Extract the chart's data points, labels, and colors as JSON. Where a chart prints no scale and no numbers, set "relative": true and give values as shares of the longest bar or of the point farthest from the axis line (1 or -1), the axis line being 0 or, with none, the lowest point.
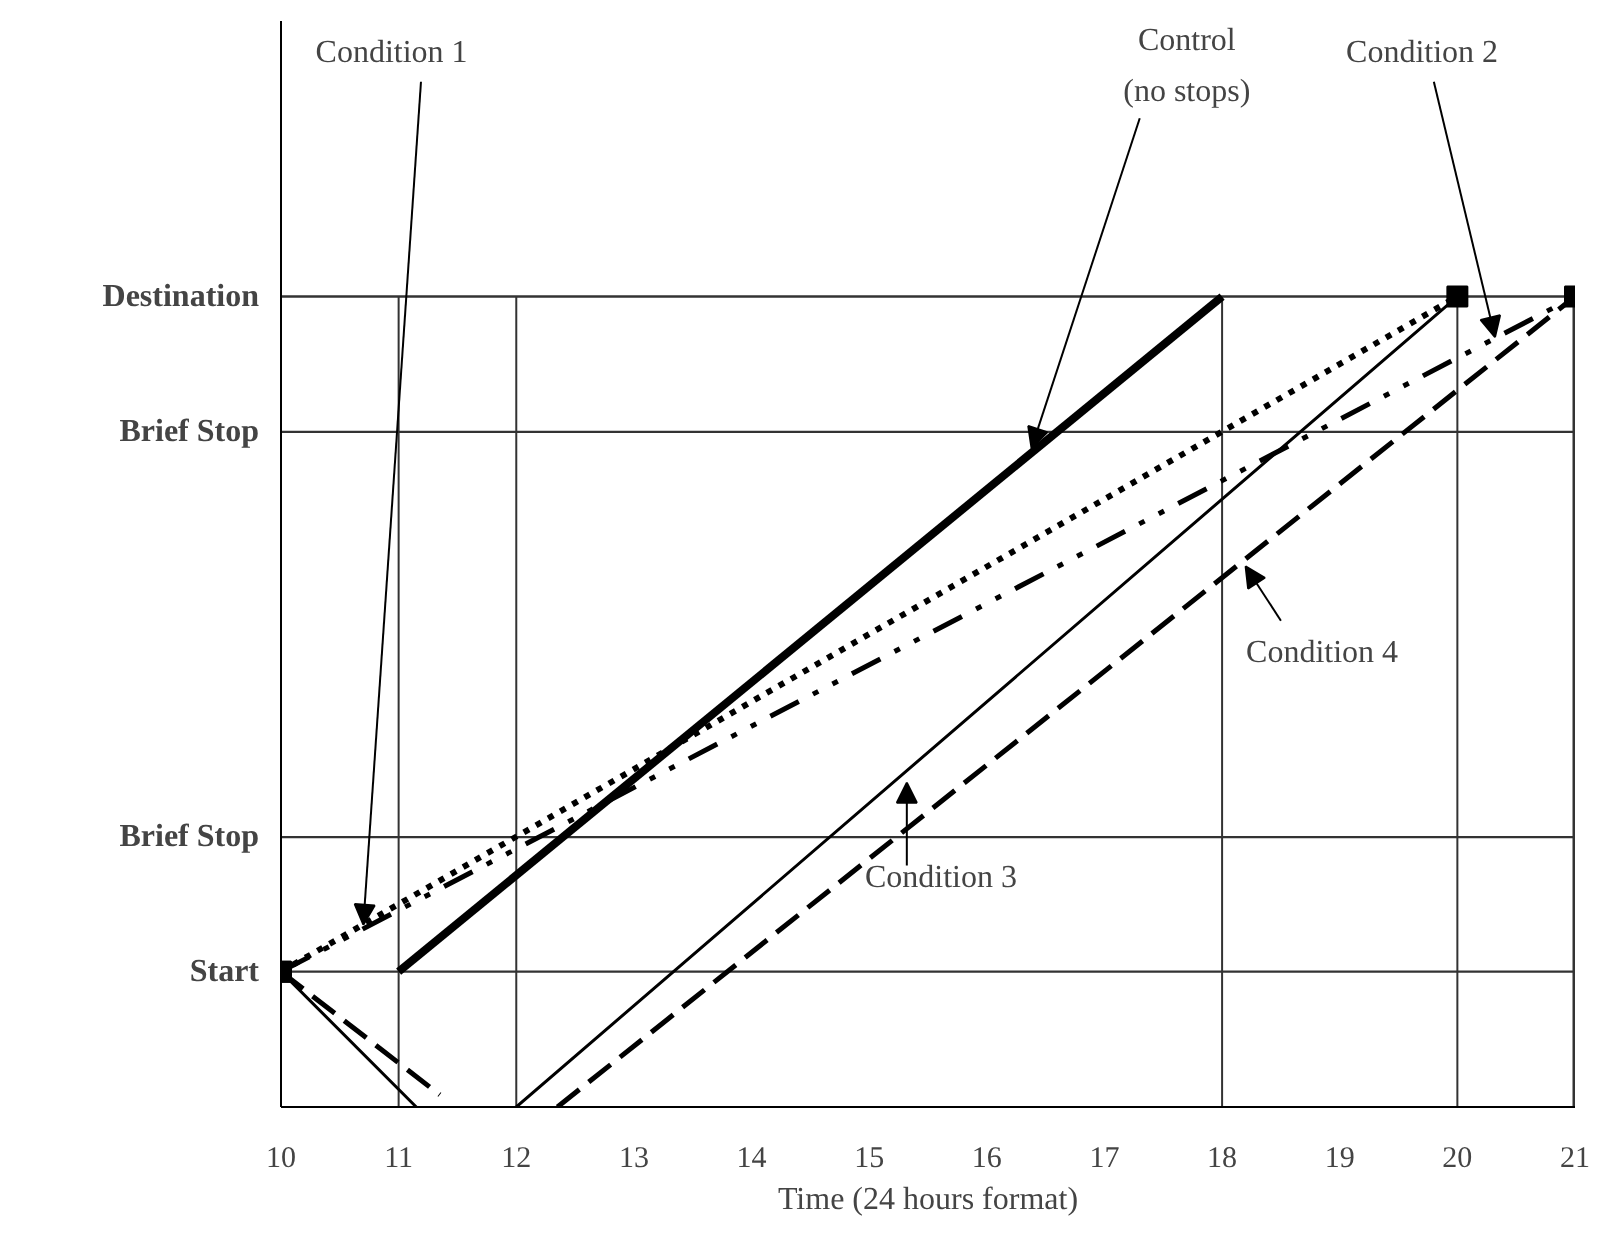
{
  "chart_data": {
    "type": "line",
    "xlabel": "Time (24 hours format)",
    "xlim": [
      10,
      21
    ],
    "xticks": [
      10,
      11,
      12,
      13,
      14,
      15,
      16,
      17,
      18,
      19,
      20,
      21
    ],
    "relative": true,
    "grid": false,
    "ref_lines": [
      {
        "axis": "y",
        "value": 0.167,
        "label": "Start"
      },
      {
        "axis": "y",
        "value": 0.333,
        "label": "Brief Stop"
      },
      {
        "axis": "y",
        "value": 0.833,
        "label": "Brief Stop"
      },
      {
        "axis": "y",
        "value": 1,
        "label": "Destination"
      },
      {
        "axis": "x",
        "value": 11
      },
      {
        "axis": "x",
        "value": 12
      },
      {
        "axis": "x",
        "value": 18
      },
      {
        "axis": "x",
        "value": 20
      },
      {
        "axis": "x",
        "value": 21
      }
    ],
    "series": [
      {
        "color": "#000000",
        "x": [
          11,
          18
        ],
        "values": [
          0.167,
          1
        ],
        "line_style": "solid",
        "marker": "none"
      },
      {
        "color": "#000000",
        "x": [
          10,
          20
        ],
        "values": [
          0.167,
          1
        ],
        "line_style": "dotted",
        "marker": "square"
      },
      {
        "color": "#000000",
        "x": [
          10,
          21
        ],
        "values": [
          0.167,
          1
        ],
        "line_style": "dashdotdot",
        "marker": "square"
      },
      {
        "color": "#000000",
        "x": [
          10,
          11.15,
          11.6,
          12,
          20
        ],
        "values": [
          0.167,
          0,
          null,
          0,
          1
        ],
        "line_style": "solid",
        "marker": "none"
      },
      {
        "color": "#000000",
        "x": [
          10,
          11.35,
          11.9,
          12.35,
          21
        ],
        "values": [
          0.167,
          0.015,
          null,
          0,
          1
        ],
        "line_style": "dashed",
        "marker": "none"
      }
    ],
    "annotations": [
      {
        "text": "Condition 1",
        "x": 10.7,
        "y": 0.225
      },
      {
        "text": "Control\n(no stops)",
        "x": 16.38,
        "y": 0.813
      },
      {
        "text": "Condition 2",
        "x": 20.32,
        "y": 0.95
      },
      {
        "text": "Condition 3",
        "x": 15.32,
        "y": 0.4
      },
      {
        "text": "Condition 4",
        "x": 18.2,
        "y": 0.667
      }
    ]
  }
}
